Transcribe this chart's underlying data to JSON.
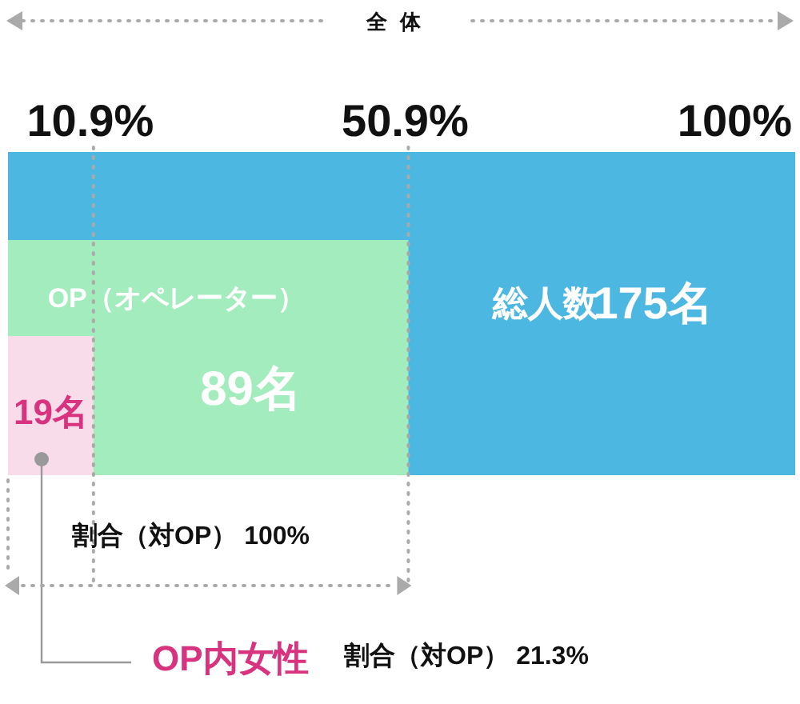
{
  "chart_data": {
    "type": "other",
    "values": [
      175,
      89,
      19
    ],
    "value_labels": [
      "175名",
      "89名",
      "19名"
    ],
    "colors": [
      "#4cb8e2",
      "#a3ecbd",
      "#f9dcea"
    ],
    "annotations": [
      "全体",
      "10.9%",
      "50.9%",
      "100%",
      "総人数",
      "OP（オペレーター）",
      "割合（対OP） 100%",
      "OP内女性",
      "割合（対OP） 21.3%"
    ]
  }
}
